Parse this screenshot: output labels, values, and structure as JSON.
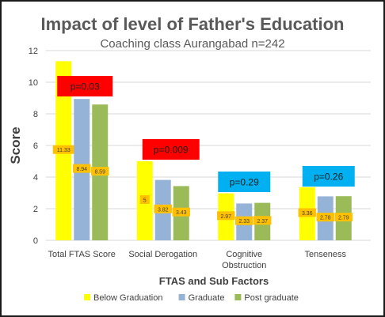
{
  "chart_data": {
    "type": "bar",
    "title": "Impact of level of Father's Education",
    "subtitle": "Coaching class Aurangabad n=242",
    "xlabel": "FTAS and Sub Factors",
    "ylabel": "Score",
    "ylim": [
      0,
      12
    ],
    "yticks": [
      0,
      2,
      4,
      6,
      8,
      10,
      12
    ],
    "grid": true,
    "legend_position": "bottom",
    "categories": [
      [
        "Total FTAS Score"
      ],
      [
        "Social Derogation"
      ],
      [
        "Cognitive",
        "Obstruction"
      ],
      [
        "Tenseness"
      ]
    ],
    "series": [
      {
        "name": "Below Graduation",
        "color": "#ffff00",
        "values": [
          11.33,
          5,
          2.97,
          3.36
        ],
        "labels": [
          "11.33",
          "5",
          "2.97",
          "3.36"
        ]
      },
      {
        "name": "Graduate",
        "color": "#95b3d7",
        "values": [
          8.94,
          3.82,
          2.33,
          2.78
        ],
        "labels": [
          "8.94",
          "3.82",
          "2.33",
          "2.78"
        ]
      },
      {
        "name": "Post graduate",
        "color": "#9bbb59",
        "values": [
          8.59,
          3.43,
          2.37,
          2.79
        ],
        "labels": [
          "8.59",
          "3.43",
          "2.37",
          "2.79"
        ]
      }
    ],
    "annotations": [
      {
        "text": "p=0.03",
        "category": 0,
        "bg": "#ff0000",
        "fg": "#1f1f1f"
      },
      {
        "text": "p=0.009",
        "category": 1,
        "bg": "#ff0000",
        "fg": "#1f1f1f"
      },
      {
        "text": "p=0.29",
        "category": 2,
        "bg": "#00b0f0",
        "fg": "#1f1f1f"
      },
      {
        "text": "p=0.26",
        "category": 3,
        "bg": "#00b0f0",
        "fg": "#1f1f1f"
      }
    ],
    "data_label_bg": "#ffc000"
  }
}
